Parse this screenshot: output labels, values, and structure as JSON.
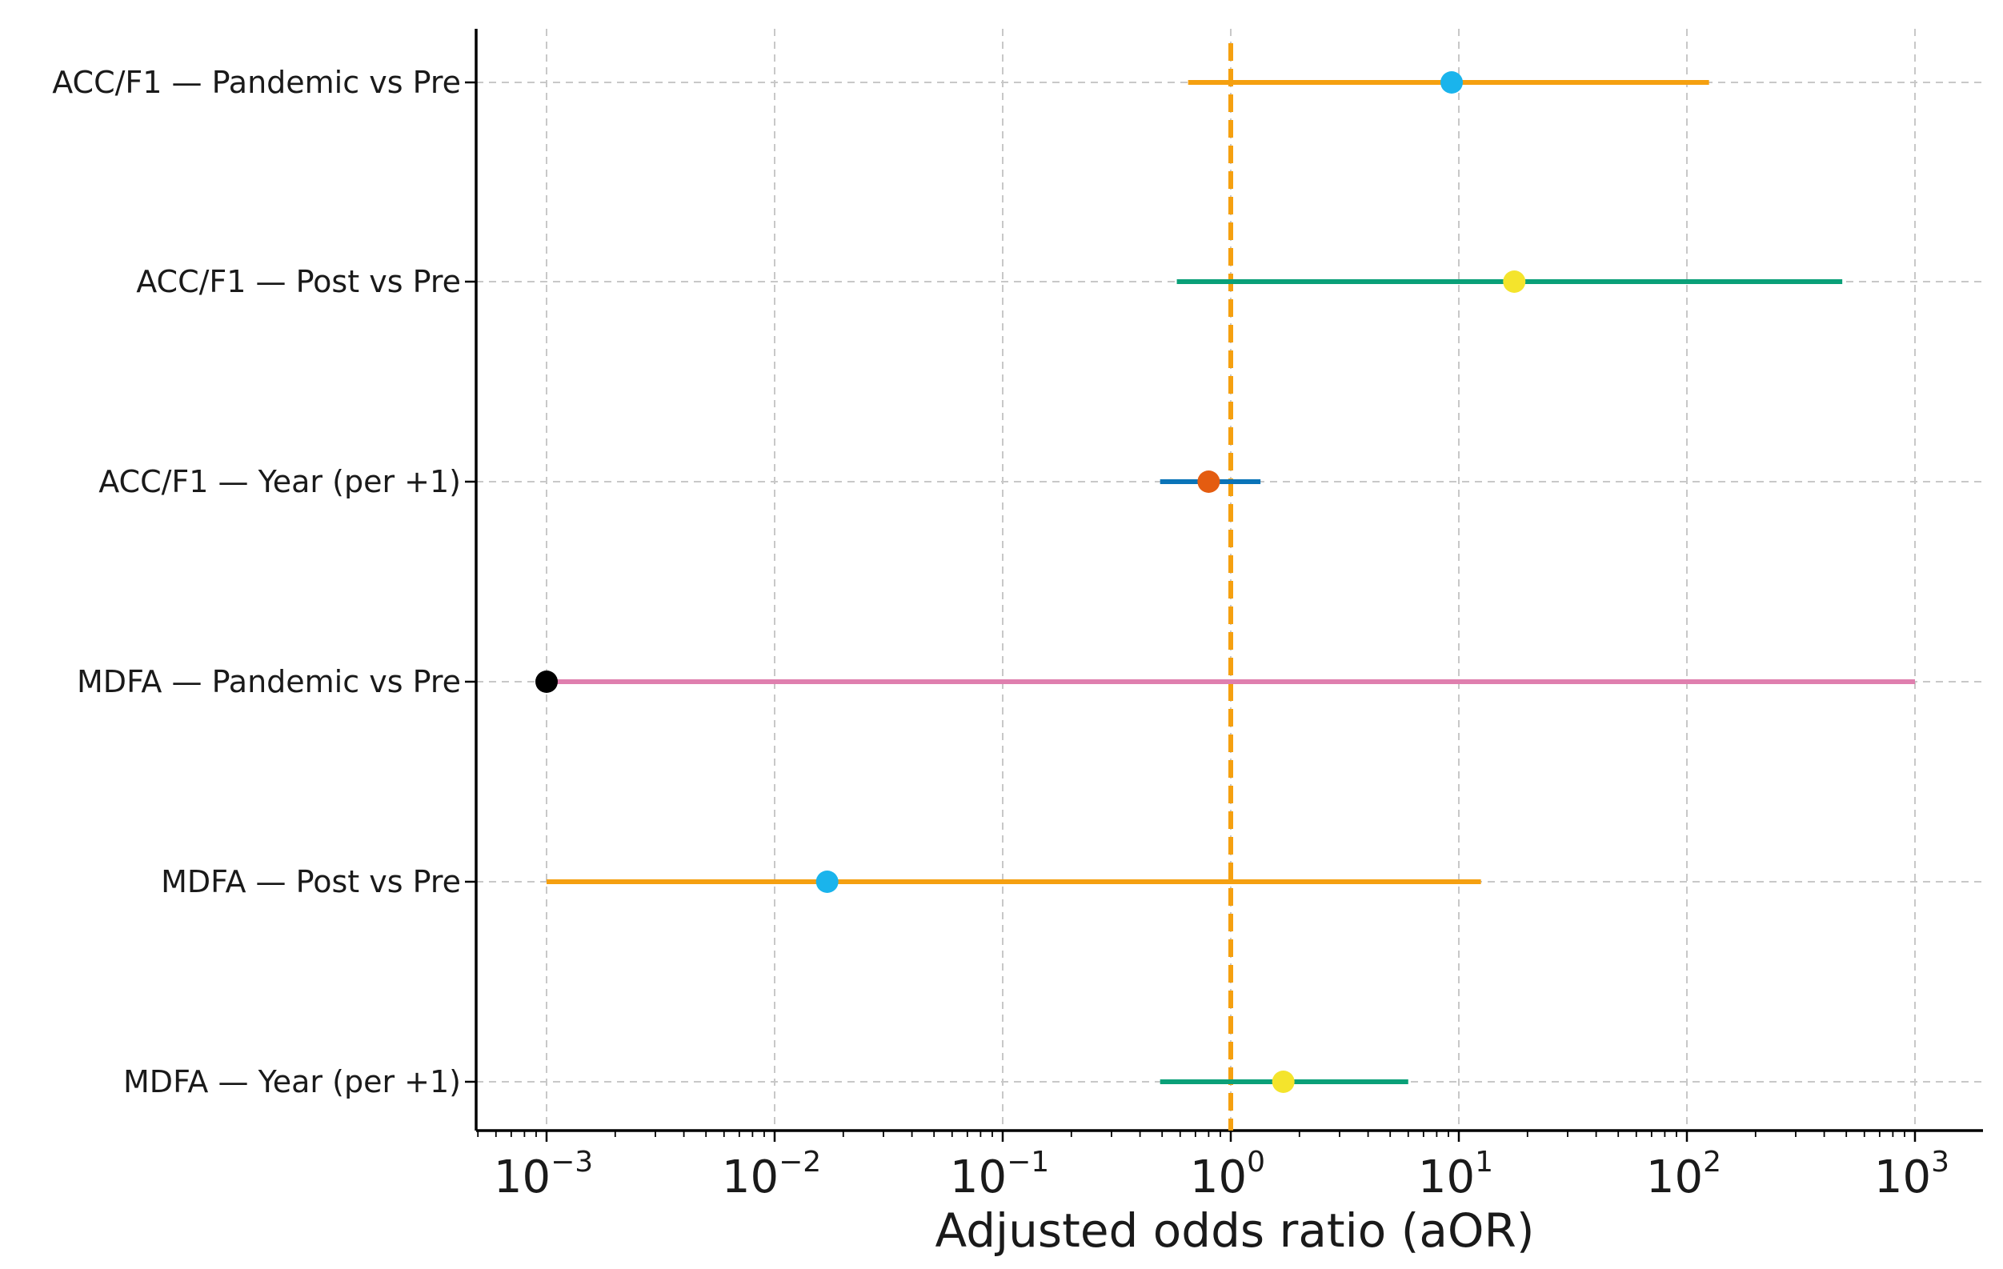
{
  "chart_data": {
    "type": "forest",
    "title": "",
    "xlabel": "Adjusted odds ratio (aOR)",
    "ylabel": "",
    "x_scale": "log",
    "xlim": [
      0.0005,
      1500
    ],
    "grid": true,
    "reference_line": {
      "value": 1,
      "color": "#F5A010",
      "style": "dashed"
    },
    "xticks": [
      {
        "value": 0.001,
        "base": "10",
        "exp": "−3"
      },
      {
        "value": 0.01,
        "base": "10",
        "exp": "−2"
      },
      {
        "value": 0.1,
        "base": "10",
        "exp": "−1"
      },
      {
        "value": 1,
        "base": "10",
        "exp": "0"
      },
      {
        "value": 10,
        "base": "10",
        "exp": "1"
      },
      {
        "value": 100,
        "base": "10",
        "exp": "2"
      },
      {
        "value": 1000,
        "base": "10",
        "exp": "3"
      }
    ],
    "rows": [
      {
        "label": "ACC/F1 — Pandemic vs Pre",
        "estimate": 9.3,
        "ci_low": 0.65,
        "ci_high": 125,
        "ci_color": "#F5A010",
        "point_color": "#1AB4EC"
      },
      {
        "label": "ACC/F1 — Post vs Pre",
        "estimate": 17.5,
        "ci_low": 0.58,
        "ci_high": 480,
        "ci_color": "#0AA078",
        "point_color": "#F4E42C"
      },
      {
        "label": "ACC/F1 — Year (per +1)",
        "estimate": 0.8,
        "ci_low": 0.49,
        "ci_high": 1.35,
        "ci_color": "#0A74B8",
        "point_color": "#E45C10"
      },
      {
        "label": "MDFA — Pandemic vs Pre",
        "estimate": 0.001,
        "ci_low": 0.001,
        "ci_high": 1000,
        "ci_color": "#DF7FAE",
        "point_color": "#000000"
      },
      {
        "label": "MDFA — Post vs Pre",
        "estimate": 0.017,
        "ci_low": 0.001,
        "ci_high": 12.5,
        "ci_color": "#F5A010",
        "point_color": "#1AB4EC"
      },
      {
        "label": "MDFA — Year (per +1)",
        "estimate": 1.7,
        "ci_low": 0.49,
        "ci_high": 6.0,
        "ci_color": "#0AA078",
        "point_color": "#F4E42C"
      }
    ]
  }
}
